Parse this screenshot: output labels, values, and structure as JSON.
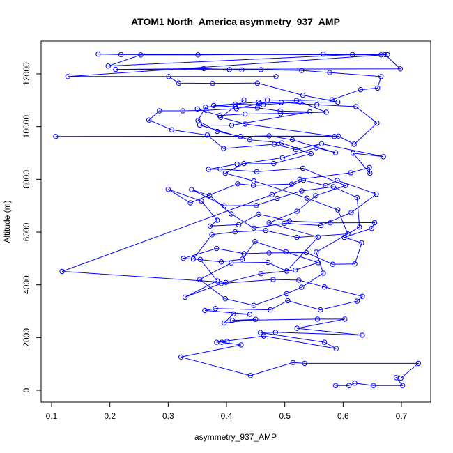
{
  "chart_data": {
    "type": "scatter",
    "title": "ATOM1 North_America asymmetry_937_AMP",
    "xlabel": "asymmetry_937_AMP",
    "ylabel": "Altitude (m)",
    "xlim": [
      0.1,
      0.7
    ],
    "ylim": [
      0,
      12000
    ],
    "x_ticks": [
      "0.1",
      "0.2",
      "0.3",
      "0.4",
      "0.5",
      "0.6",
      "0.7"
    ],
    "y_ticks": [
      "0",
      "2000",
      "4000",
      "6000",
      "8000",
      "10000",
      "12000"
    ],
    "grid": false,
    "legend": "none",
    "series_color": "#0000ff",
    "marker": "open-circle",
    "connected": true,
    "points": [
      [
        0.587,
        180
      ],
      [
        0.61,
        180
      ],
      [
        0.62,
        270
      ],
      [
        0.652,
        180
      ],
      [
        0.702,
        180
      ],
      [
        0.691,
        480
      ],
      [
        0.699,
        460
      ],
      [
        0.729,
        1020
      ],
      [
        0.534,
        1020
      ],
      [
        0.514,
        1050
      ],
      [
        0.441,
        560
      ],
      [
        0.322,
        1260
      ],
      [
        0.425,
        1720
      ],
      [
        0.392,
        1820
      ],
      [
        0.401,
        1850
      ],
      [
        0.383,
        1820
      ],
      [
        0.464,
        2060
      ],
      [
        0.588,
        1580
      ],
      [
        0.568,
        1820
      ],
      [
        0.458,
        2190
      ],
      [
        0.484,
        2200
      ],
      [
        0.633,
        2090
      ],
      [
        0.521,
        2350
      ],
      [
        0.603,
        2700
      ],
      [
        0.556,
        2700
      ],
      [
        0.41,
        2650
      ],
      [
        0.45,
        2690
      ],
      [
        0.396,
        2550
      ],
      [
        0.412,
        2900
      ],
      [
        0.44,
        2880
      ],
      [
        0.363,
        3030
      ],
      [
        0.381,
        3100
      ],
      [
        0.475,
        3050
      ],
      [
        0.505,
        3400
      ],
      [
        0.561,
        3050
      ],
      [
        0.624,
        3380
      ],
      [
        0.633,
        3560
      ],
      [
        0.568,
        3920
      ],
      [
        0.524,
        4180
      ],
      [
        0.48,
        4200
      ],
      [
        0.391,
        4050
      ],
      [
        0.329,
        3530
      ],
      [
        0.384,
        4150
      ],
      [
        0.355,
        4960
      ],
      [
        0.326,
        5000
      ],
      [
        0.383,
        5380
      ],
      [
        0.43,
        5180
      ],
      [
        0.473,
        5210
      ],
      [
        0.537,
        5220
      ],
      [
        0.582,
        4780
      ],
      [
        0.62,
        4790
      ],
      [
        0.632,
        5590
      ],
      [
        0.602,
        5800
      ],
      [
        0.649,
        6140
      ],
      [
        0.654,
        6360
      ],
      [
        0.578,
        6350
      ],
      [
        0.508,
        6420
      ],
      [
        0.455,
        6680
      ],
      [
        0.421,
        6280
      ],
      [
        0.372,
        6230
      ],
      [
        0.384,
        6450
      ],
      [
        0.357,
        7180
      ],
      [
        0.3,
        7620
      ],
      [
        0.338,
        7110
      ],
      [
        0.419,
        7830
      ],
      [
        0.446,
        7770
      ],
      [
        0.512,
        7820
      ],
      [
        0.526,
        8000
      ],
      [
        0.613,
        8250
      ],
      [
        0.645,
        8450
      ],
      [
        0.646,
        8230
      ],
      [
        0.617,
        8990
      ],
      [
        0.669,
        8860
      ],
      [
        0.563,
        9350
      ],
      [
        0.519,
        9130
      ],
      [
        0.482,
        9330
      ],
      [
        0.395,
        9170
      ],
      [
        0.367,
        9680
      ],
      [
        0.306,
        9880
      ],
      [
        0.267,
        10250
      ],
      [
        0.285,
        10600
      ],
      [
        0.325,
        10600
      ],
      [
        0.365,
        10620
      ],
      [
        0.417,
        10680
      ],
      [
        0.457,
        10880
      ],
      [
        0.494,
        10920
      ],
      [
        0.555,
        10830
      ],
      [
        0.622,
        10760
      ],
      [
        0.658,
        10130
      ],
      [
        0.619,
        9330
      ],
      [
        0.592,
        9640
      ],
      [
        0.107,
        9630
      ],
      [
        0.585,
        9630
      ],
      [
        0.432,
        10100
      ],
      [
        0.39,
        10350
      ],
      [
        0.43,
        11010
      ],
      [
        0.47,
        11010
      ],
      [
        0.52,
        10990
      ],
      [
        0.581,
        11020
      ],
      [
        0.63,
        11400
      ],
      [
        0.659,
        11460
      ],
      [
        0.665,
        11900
      ],
      [
        0.577,
        12050
      ],
      [
        0.529,
        12130
      ],
      [
        0.459,
        12160
      ],
      [
        0.426,
        12150
      ],
      [
        0.405,
        12160
      ],
      [
        0.361,
        12200
      ],
      [
        0.21,
        12170
      ],
      [
        0.698,
        12190
      ],
      [
        0.672,
        12730
      ],
      [
        0.219,
        12730
      ],
      [
        0.18,
        12750
      ],
      [
        0.665,
        12720
      ],
      [
        0.566,
        12750
      ],
      [
        0.351,
        12720
      ],
      [
        0.253,
        12720
      ],
      [
        0.197,
        12300
      ],
      [
        0.616,
        12730
      ],
      [
        0.676,
        12730
      ],
      [
        0.128,
        11900
      ],
      [
        0.485,
        11900
      ],
      [
        0.301,
        11900
      ],
      [
        0.318,
        11650
      ],
      [
        0.376,
        11640
      ],
      [
        0.453,
        11650
      ],
      [
        0.531,
        11190
      ],
      [
        0.591,
        10930
      ],
      [
        0.455,
        10930
      ],
      [
        0.378,
        10800
      ],
      [
        0.415,
        10750
      ],
      [
        0.453,
        10710
      ],
      [
        0.492,
        10590
      ],
      [
        0.543,
        10560
      ],
      [
        0.409,
        10050
      ],
      [
        0.354,
        10060
      ],
      [
        0.44,
        9500
      ],
      [
        0.495,
        9380
      ],
      [
        0.545,
        8970
      ],
      [
        0.481,
        8600
      ],
      [
        0.418,
        8580
      ],
      [
        0.369,
        8380
      ],
      [
        0.389,
        8390
      ],
      [
        0.452,
        8290
      ],
      [
        0.531,
        8420
      ],
      [
        0.604,
        7760
      ],
      [
        0.553,
        7380
      ],
      [
        0.521,
        6790
      ],
      [
        0.473,
        6350
      ],
      [
        0.557,
        5810
      ],
      [
        0.503,
        4520
      ],
      [
        0.471,
        4850
      ],
      [
        0.408,
        4830
      ],
      [
        0.354,
        4200
      ],
      [
        0.398,
        3470
      ],
      [
        0.447,
        3220
      ],
      [
        0.503,
        3660
      ],
      [
        0.529,
        3910
      ],
      [
        0.566,
        4440
      ],
      [
        0.554,
        5240
      ],
      [
        0.628,
        6190
      ],
      [
        0.624,
        7310
      ],
      [
        0.583,
        7720
      ],
      [
        0.529,
        7560
      ],
      [
        0.487,
        7280
      ],
      [
        0.451,
        7010
      ],
      [
        0.396,
        7000
      ],
      [
        0.34,
        7610
      ],
      [
        0.371,
        7390
      ],
      [
        0.408,
        6690
      ],
      [
        0.447,
        6150
      ],
      [
        0.499,
        6330
      ],
      [
        0.562,
        6250
      ],
      [
        0.614,
        6740
      ],
      [
        0.657,
        7440
      ],
      [
        0.59,
        7960
      ],
      [
        0.57,
        7760
      ],
      [
        0.532,
        7970
      ],
      [
        0.478,
        7420
      ],
      [
        0.118,
        4510
      ],
      [
        0.399,
        4090
      ],
      [
        0.459,
        4420
      ],
      [
        0.518,
        4560
      ],
      [
        0.557,
        4840
      ],
      [
        0.502,
        5250
      ],
      [
        0.449,
        5640
      ],
      [
        0.427,
        4970
      ],
      [
        0.391,
        4870
      ],
      [
        0.343,
        4980
      ],
      [
        0.375,
        5900
      ],
      [
        0.415,
        6010
      ],
      [
        0.467,
        6060
      ],
      [
        0.521,
        5800
      ],
      [
        0.608,
        5930
      ],
      [
        0.591,
        6840
      ],
      [
        0.538,
        7290
      ],
      [
        0.447,
        7940
      ],
      [
        0.398,
        8230
      ],
      [
        0.43,
        8600
      ],
      [
        0.496,
        8820
      ],
      [
        0.554,
        9200
      ],
      [
        0.587,
        9010
      ],
      [
        0.513,
        9500
      ],
      [
        0.473,
        9650
      ],
      [
        0.424,
        9630
      ],
      [
        0.384,
        9820
      ],
      [
        0.351,
        10230
      ],
      [
        0.364,
        10740
      ],
      [
        0.415,
        10850
      ],
      [
        0.463,
        10830
      ],
      [
        0.526,
        10940
      ],
      [
        0.571,
        10550
      ],
      [
        0.493,
        10500
      ],
      [
        0.432,
        10480
      ],
      [
        0.388,
        10420
      ],
      [
        0.35,
        10670
      ]
    ]
  }
}
